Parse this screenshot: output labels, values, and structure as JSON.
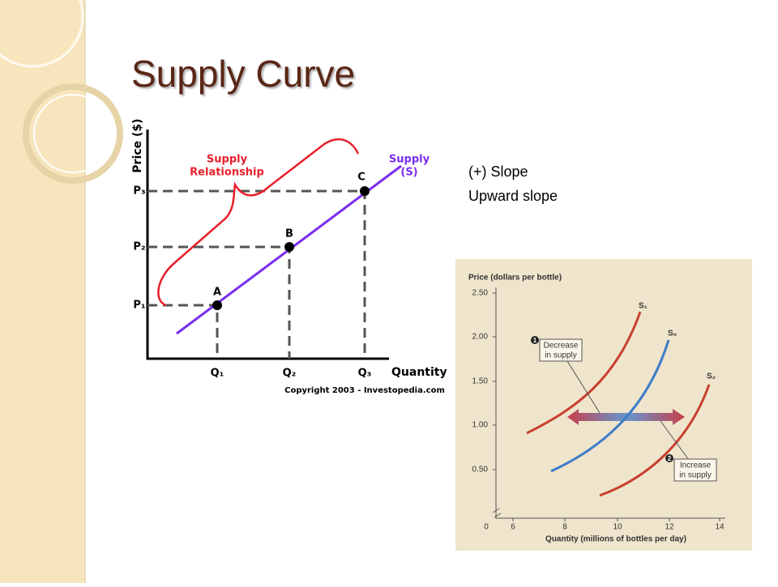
{
  "slide": {
    "title": "Supply Curve",
    "notes": [
      "(+) Slope",
      "Upward slope"
    ]
  },
  "figure1": {
    "y_axis_label": "Price ($)",
    "x_axis_label": "Quantity",
    "price_labels": [
      "P₁",
      "P₂",
      "P₃"
    ],
    "quantity_labels": [
      "Q₁",
      "Q₂",
      "Q₃"
    ],
    "points": [
      "A",
      "B",
      "C"
    ],
    "relationship_label": [
      "Supply",
      "Relationship"
    ],
    "curve_label": [
      "Supply",
      "(S)"
    ],
    "credit": "Copyright 2003 - Investopedia.com"
  },
  "figure2": {
    "y_axis_label": "Price (dollars per bottle)",
    "yticks": [
      "2.50",
      "2.00",
      "1.50",
      "1.00",
      "0.50"
    ],
    "origin": "0",
    "xticks": [
      "6",
      "8",
      "10",
      "12",
      "14"
    ],
    "x_axis_label": "Quantity (millions of bottles per day)",
    "curves": [
      "S₁",
      "S₀",
      "S₂"
    ],
    "callouts": [
      {
        "number": "1",
        "text": [
          "Decrease",
          "in supply"
        ]
      },
      {
        "number": "2",
        "text": [
          "Increase",
          "in supply"
        ]
      }
    ]
  }
}
